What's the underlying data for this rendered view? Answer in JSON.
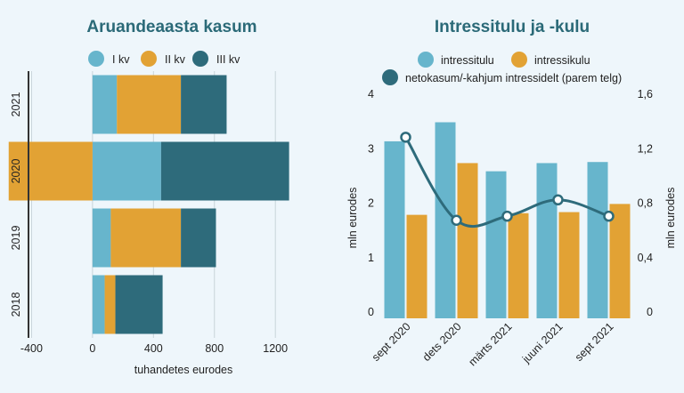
{
  "colors": {
    "light_blue": "#67b5cc",
    "orange": "#e2a234",
    "dark_teal": "#2e6b7b",
    "title": "#2b6a78",
    "grid": "#c8d4da",
    "background": "#eef6fb"
  },
  "chart_data": [
    {
      "type": "bar",
      "orientation": "horizontal",
      "stacked": true,
      "title": "Aruandeaasta kasum",
      "xlabel": "tuhandetes eurodes",
      "xlim": [
        -420,
        1380
      ],
      "xticks": [
        -400,
        0,
        400,
        800,
        1200
      ],
      "xtick_labels": [
        "-400",
        "0",
        "400",
        "800",
        "1200"
      ],
      "grid": "vertical",
      "legend_position": "top",
      "categories": [
        "2021",
        "2020",
        "2019",
        "2018"
      ],
      "series": [
        {
          "name": "I kv",
          "color": "#67b5cc",
          "values": [
            160,
            450,
            120,
            80
          ]
        },
        {
          "name": "II kv",
          "color": "#e2a234",
          "values": [
            420,
            -550,
            460,
            70
          ]
        },
        {
          "name": "III kv",
          "color": "#2e6b7b",
          "values": [
            300,
            840,
            230,
            310
          ]
        }
      ]
    },
    {
      "type": "bar",
      "title": "Intressitulu ja -kulu",
      "xlabel": "",
      "ylabel": "mln eurodes",
      "ylabel_right": "mln eurodes",
      "ylim": [
        0,
        4
      ],
      "yticks": [
        0,
        1,
        2,
        3,
        4
      ],
      "ytick_labels": [
        "0",
        "1",
        "2",
        "3",
        "4"
      ],
      "ylim_right": [
        0,
        1.6
      ],
      "yticks_right": [
        0,
        0.4,
        0.8,
        1.2,
        1.6
      ],
      "ytick_labels_right": [
        "0",
        "0,4",
        "0,8",
        "1,2",
        "1,6"
      ],
      "grid": false,
      "legend_position": "top",
      "categories": [
        "sept 2020",
        "dets 2020",
        "märts 2021",
        "juuni 2021",
        "sept 2021"
      ],
      "series": [
        {
          "name": "intressitulu",
          "type": "bar",
          "axis": "left",
          "color": "#67b5cc",
          "values": [
            3.25,
            3.6,
            2.7,
            2.85,
            2.87
          ]
        },
        {
          "name": "intressikulu",
          "type": "bar",
          "axis": "left",
          "color": "#e2a234",
          "values": [
            1.9,
            2.85,
            1.93,
            1.95,
            2.1
          ]
        },
        {
          "name": "netokasum/-kahjum intressidelt (parem telg)",
          "type": "line",
          "axis": "right",
          "color": "#2e6b7b",
          "values": [
            1.33,
            0.72,
            0.75,
            0.87,
            0.75
          ]
        }
      ]
    }
  ]
}
